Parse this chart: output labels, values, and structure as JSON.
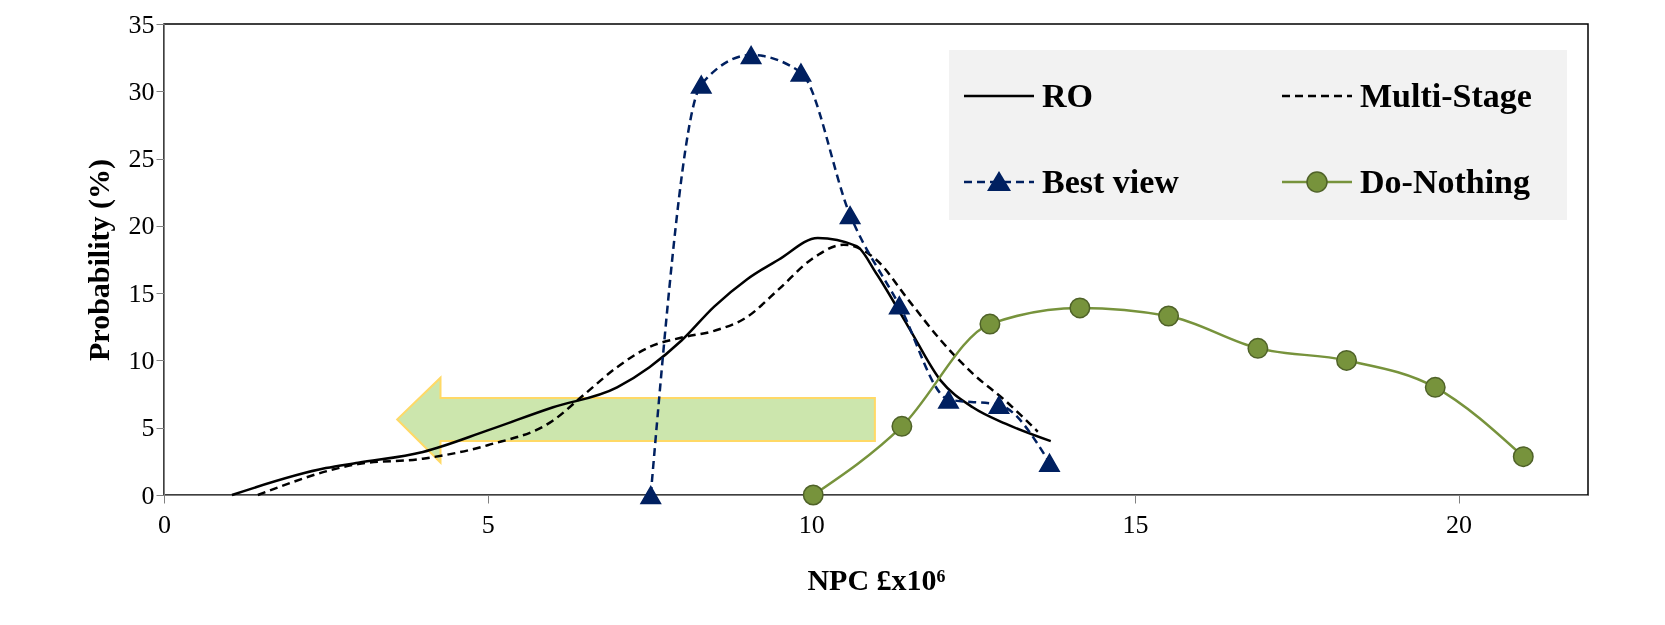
{
  "chart_data": {
    "type": "line",
    "xlabel": "NPC £x10⁶",
    "ylabel": "Probability (%)",
    "xlim": [
      0,
      22
    ],
    "xticks": [
      0,
      5,
      10,
      15,
      20
    ],
    "ylim": [
      0,
      35
    ],
    "yticks": [
      0,
      5,
      10,
      15,
      20,
      25,
      30,
      35
    ],
    "grid": false,
    "legend": "top right",
    "series": [
      {
        "name": "RO",
        "color": "#000000",
        "line_style": "solid",
        "marker": "none",
        "x": [
          1.05,
          2.5,
          3,
          4,
          5,
          6,
          7,
          7.5,
          8,
          8.5,
          9,
          9.5,
          10.1,
          10.7,
          11,
          11.5,
          12,
          12.5,
          13,
          13.7
        ],
        "values": [
          0,
          2.0,
          2.4,
          3.2,
          4.8,
          6.5,
          8.0,
          9.5,
          11.5,
          14.0,
          16,
          17.5,
          19.1,
          18.5,
          16.5,
          12.5,
          8.5,
          6.5,
          5.3,
          4.0
        ]
      },
      {
        "name": "Multi-Stage",
        "color": "#000000",
        "line_style": "dashed",
        "marker": "none",
        "x": [
          1.45,
          3,
          4,
          5,
          6,
          6.5,
          7,
          7.5,
          8,
          8.5,
          9,
          9.5,
          10,
          10.5,
          11,
          11.5,
          12,
          12.5,
          13,
          13.5
        ],
        "values": [
          0,
          2.3,
          2.7,
          3.7,
          5.5,
          7.5,
          9.5,
          11,
          11.7,
          12.2,
          13.2,
          15.3,
          17.5,
          18.6,
          17.5,
          14.5,
          11.5,
          9,
          7,
          4.7
        ]
      },
      {
        "name": "Best view",
        "color": "#002060",
        "line_style": "dashed",
        "marker": "triangle",
        "x": [
          7.52,
          8.3,
          9.07,
          9.84,
          10.6,
          11.36,
          12.12,
          12.9,
          13.68
        ],
        "values": [
          0,
          30.5,
          32.7,
          31.4,
          20.8,
          14.1,
          7.1,
          6.7,
          2.4
        ]
      },
      {
        "name": "Do-Nothing",
        "color": "#77933c",
        "line_style": "solid",
        "marker": "circle",
        "x": [
          10.03,
          11.4,
          12.76,
          14.15,
          15.52,
          16.9,
          18.27,
          19.64,
          21.0
        ],
        "values": [
          0,
          5.1,
          12.7,
          13.9,
          13.3,
          10.9,
          10.0,
          8.0,
          2.85
        ]
      }
    ]
  }
}
